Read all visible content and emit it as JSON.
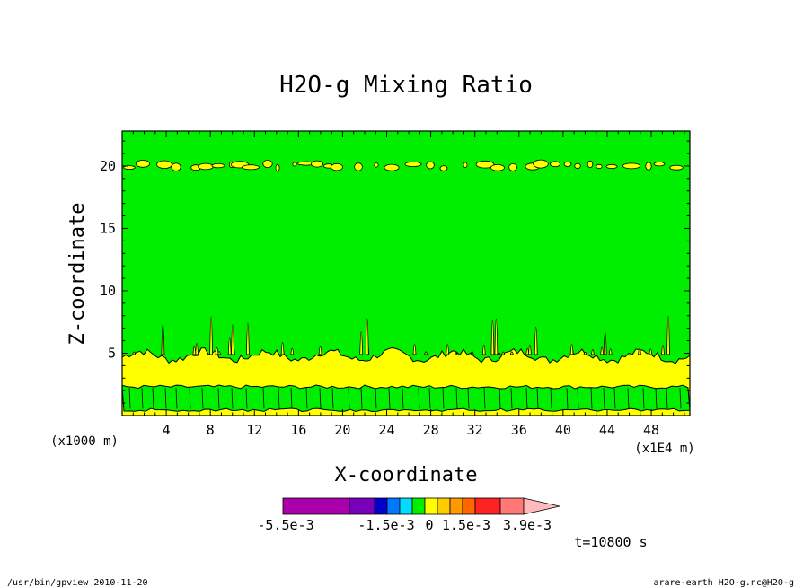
{
  "chart_data": {
    "type": "heatmap",
    "title": "H2O-g Mixing Ratio",
    "xlabel": "X-coordinate",
    "ylabel": "Z-coordinate",
    "x_unit_left": "(x1000 m)",
    "x_unit_right": "(x1E4 m)",
    "time_label": "t=10800 s",
    "xlim": [
      0,
      51.5
    ],
    "ylim": [
      0,
      22.8
    ],
    "x_ticks": [
      4,
      8,
      12,
      16,
      20,
      24,
      28,
      32,
      36,
      40,
      44,
      48
    ],
    "y_ticks": [
      5,
      10,
      15,
      20
    ],
    "regions": [
      {
        "name": "lower-green-band",
        "z_from": 0.0,
        "z_to": 2.4,
        "color": "#00ee00"
      },
      {
        "name": "lower-yellow-band",
        "z_from": 0.0,
        "z_to": 5.0,
        "color": "#ffff00"
      },
      {
        "name": "background",
        "color": "#00ee00"
      },
      {
        "name": "upper-yellow-patches",
        "z_center": 20.0,
        "color": "#ffff00"
      }
    ],
    "colorbar": {
      "labels": [
        "-5.5e-3",
        "-1.5e-3",
        "0",
        "1.5e-3",
        "3.9e-3"
      ],
      "colors": [
        "#aa00aa",
        "#7700bb",
        "#0000cc",
        "#0077ff",
        "#00ddff",
        "#00ee00",
        "#ffff00",
        "#ffcc00",
        "#ff9900",
        "#ff6600",
        "#ff2222",
        "#ff7777",
        "#ffbbbb"
      ]
    }
  },
  "footer": {
    "left": "/usr/bin/gpview  2010-11-20",
    "right": "arare-earth_H2O-g.nc@H2O-g"
  }
}
